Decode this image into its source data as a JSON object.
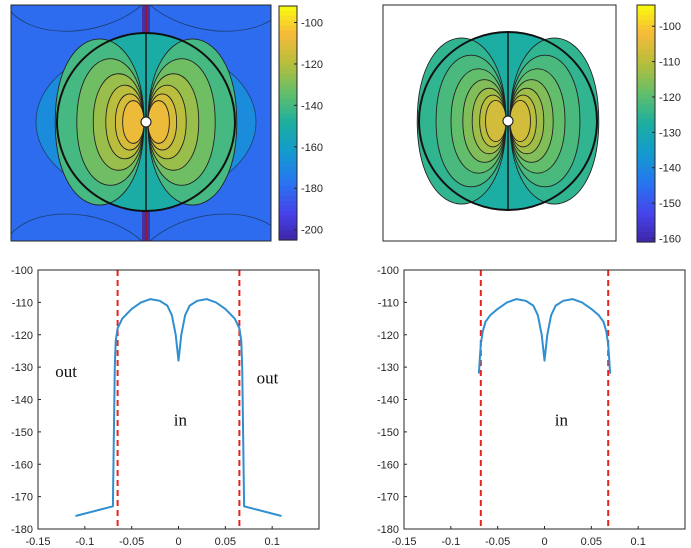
{
  "colormaps": [
    {
      "name": "left",
      "clim": [
        -205,
        -92
      ],
      "ticks": [
        -100,
        -120,
        -140,
        -160,
        -180,
        -200
      ],
      "background_value": -180,
      "outer_ring_value": -168,
      "inside_levels": [
        -150,
        -140,
        -132,
        -125,
        -119,
        -113,
        -108
      ],
      "has_outside_field": true
    },
    {
      "name": "right",
      "clim": [
        -161,
        -94
      ],
      "ticks": [
        -100,
        -110,
        -120,
        -130,
        -140,
        -150,
        -160
      ],
      "background_value": null,
      "outer_ring_value": null,
      "inside_levels": [
        -128,
        -125,
        -122,
        -119,
        -116,
        -113,
        -110,
        -107
      ],
      "has_outside_field": false
    }
  ],
  "chart_data": [
    {
      "type": "line",
      "name": "left-profile",
      "xlim": [
        -0.15,
        0.15
      ],
      "ylim": [
        -180,
        -100
      ],
      "xticks": [
        -0.15,
        -0.1,
        -0.05,
        0,
        0.05,
        0.1
      ],
      "xtick_labels": [
        "-0.15",
        "-0.1",
        "-0.05",
        "0",
        "0.05",
        "0.1"
      ],
      "yticks": [
        -100,
        -110,
        -120,
        -130,
        -140,
        -150,
        -160,
        -170,
        -180
      ],
      "series": [
        {
          "name": "field",
          "color": "#2f8fd0",
          "x": [
            -0.11,
            -0.07,
            -0.069,
            -0.068,
            -0.067,
            -0.065,
            -0.06,
            -0.05,
            -0.04,
            -0.03,
            -0.02,
            -0.012,
            -0.007,
            -0.003,
            0,
            0.003,
            0.007,
            0.012,
            0.02,
            0.03,
            0.04,
            0.05,
            0.06,
            0.065,
            0.067,
            0.068,
            0.069,
            0.07,
            0.11
          ],
          "y": [
            -176,
            -173,
            -150,
            -130,
            -122,
            -118,
            -115,
            -112,
            -110,
            -109,
            -109.5,
            -111,
            -114,
            -120,
            -128,
            -120,
            -114,
            -111,
            -109.5,
            -109,
            -110,
            -112,
            -115,
            -118,
            -122,
            -130,
            -150,
            -173,
            -176
          ]
        }
      ],
      "vlines": [
        -0.065,
        0.065
      ],
      "vline_color": "#e8231f",
      "annotations": [
        {
          "text": "out",
          "x": -0.12,
          "y": -133
        },
        {
          "text": "in",
          "x": 0.002,
          "y": -148
        },
        {
          "text": "out",
          "x": 0.095,
          "y": -135
        }
      ]
    },
    {
      "type": "line",
      "name": "right-profile",
      "xlim": [
        -0.15,
        0.15
      ],
      "ylim": [
        -180,
        -100
      ],
      "xticks": [
        -0.15,
        -0.1,
        -0.05,
        0,
        0.05,
        0.1
      ],
      "xtick_labels": [
        "-0.15",
        "-0.1",
        "-0.05",
        "0",
        "0.05",
        "0.1"
      ],
      "yticks": [
        -100,
        -110,
        -120,
        -130,
        -140,
        -150,
        -160,
        -170,
        -180
      ],
      "series": [
        {
          "name": "field",
          "color": "#2f8fd0",
          "x": [
            -0.07,
            -0.069,
            -0.068,
            -0.066,
            -0.063,
            -0.058,
            -0.05,
            -0.04,
            -0.03,
            -0.02,
            -0.012,
            -0.007,
            -0.003,
            0,
            0.003,
            0.007,
            0.012,
            0.02,
            0.03,
            0.04,
            0.05,
            0.058,
            0.063,
            0.066,
            0.068,
            0.069,
            0.07
          ],
          "y": [
            -132,
            -127,
            -123,
            -119,
            -116,
            -114,
            -112,
            -110,
            -109,
            -109.5,
            -111,
            -114,
            -120,
            -128,
            -120,
            -114,
            -111,
            -109.5,
            -109,
            -110,
            -112,
            -114,
            -116,
            -119,
            -123,
            -127,
            -132
          ]
        }
      ],
      "vlines": [
        -0.068,
        0.068
      ],
      "vline_color": "#e8231f",
      "annotations": [
        {
          "text": "in",
          "x": 0.018,
          "y": -148
        }
      ]
    }
  ]
}
